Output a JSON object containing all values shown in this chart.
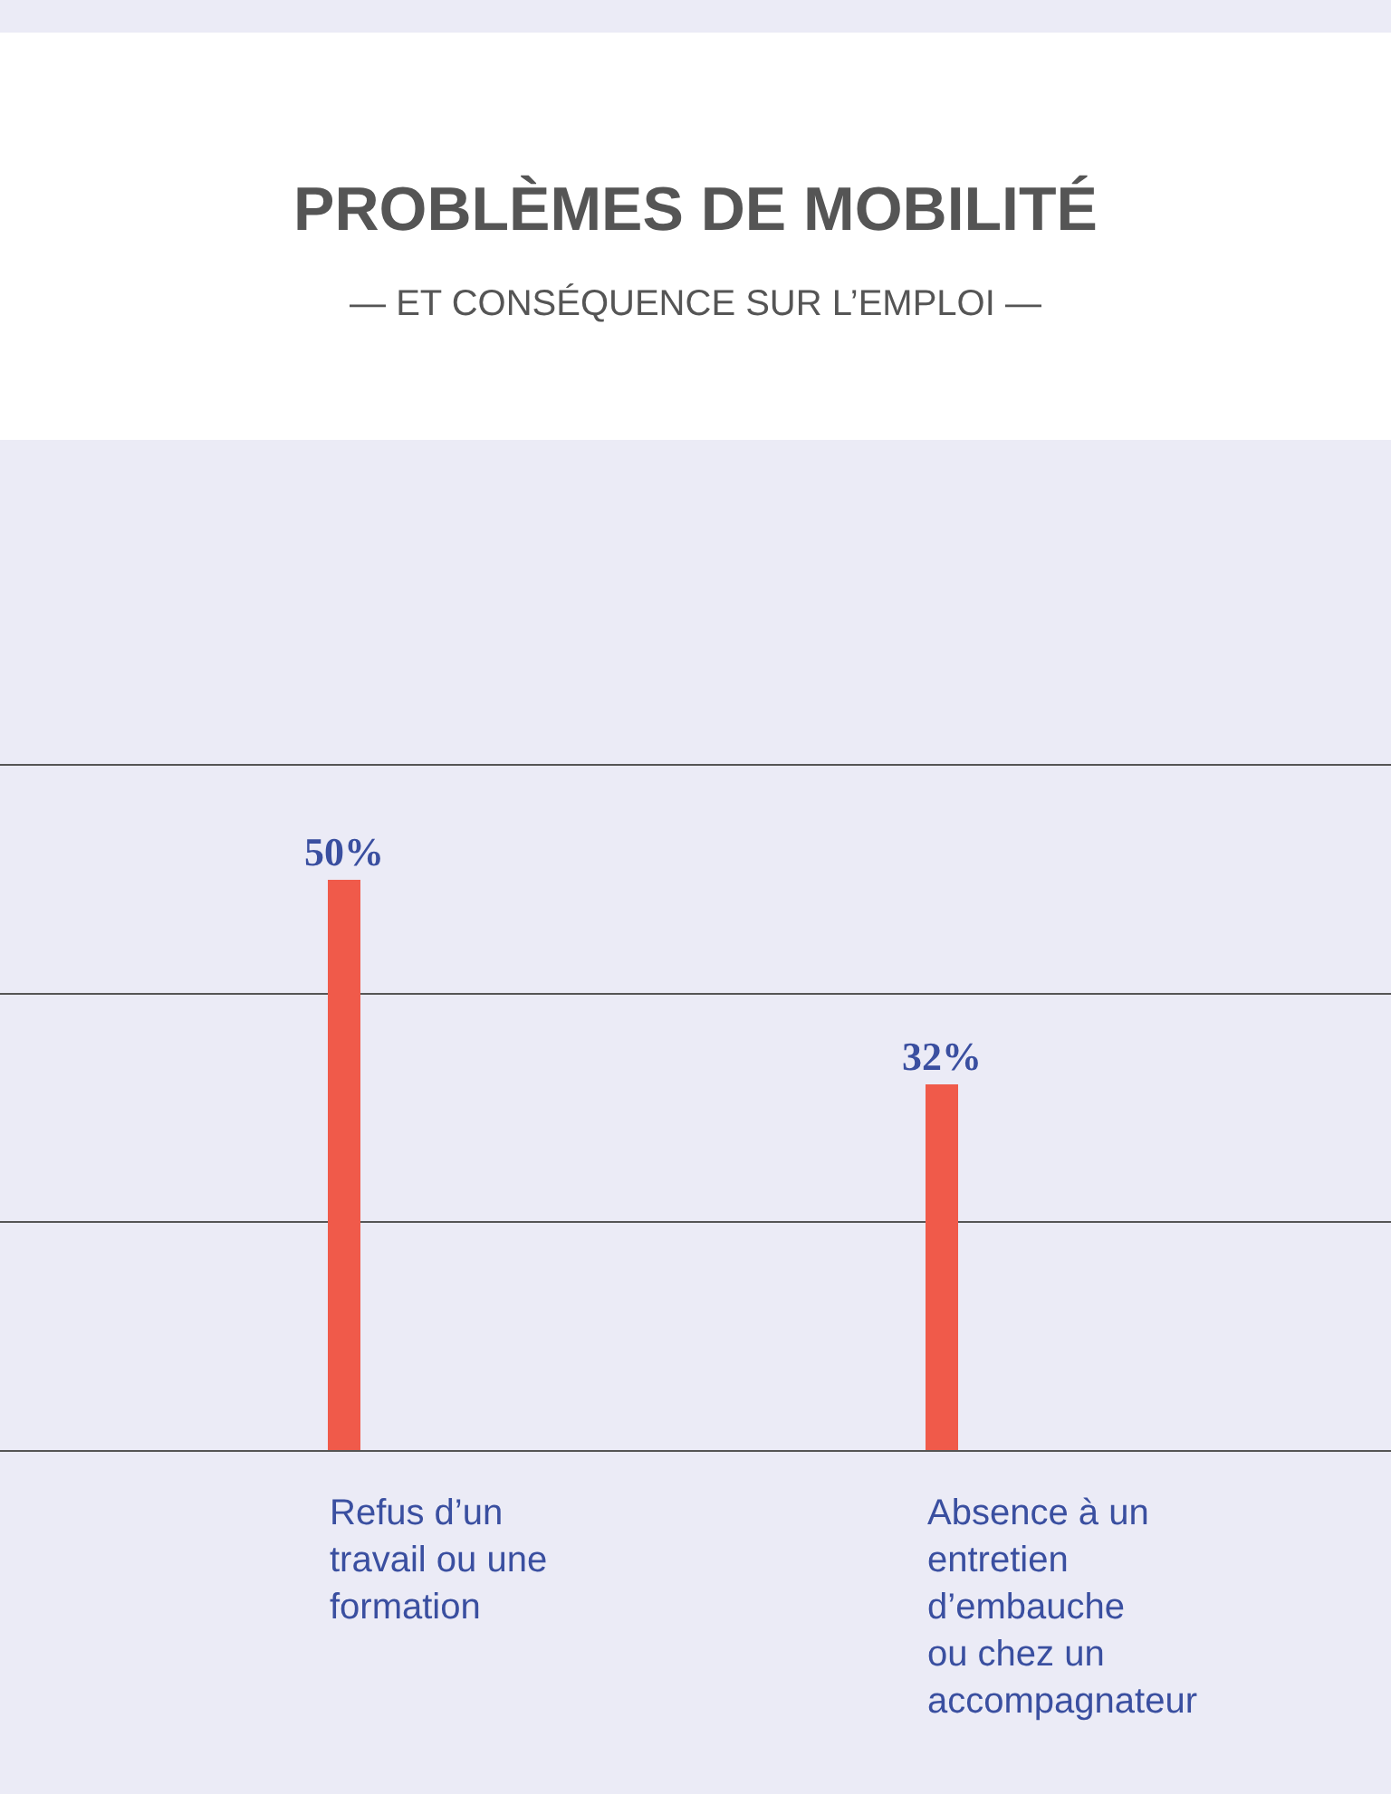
{
  "chart_data": {
    "type": "bar",
    "title": "PROBLÈMES DE MOBILITÉ",
    "subtitle": "— ET CONSÉQUENCE SUR L’EMPLOI —",
    "categories": [
      "Refus d’un\ntravail ou une\nformation",
      "Absence à un\nentretien\nd’embauche\nou chez un\naccompagnateur"
    ],
    "values": [
      50,
      32
    ],
    "value_labels": [
      "50%",
      "32%"
    ],
    "color": "#f05a4a",
    "ylim": [
      0,
      60
    ],
    "yticks": [
      {
        "value": 20,
        "label": null
      },
      {
        "value": 40,
        "label": null
      }
    ],
    "grid": "y",
    "tick_labels": "x",
    "legend": false
  }
}
